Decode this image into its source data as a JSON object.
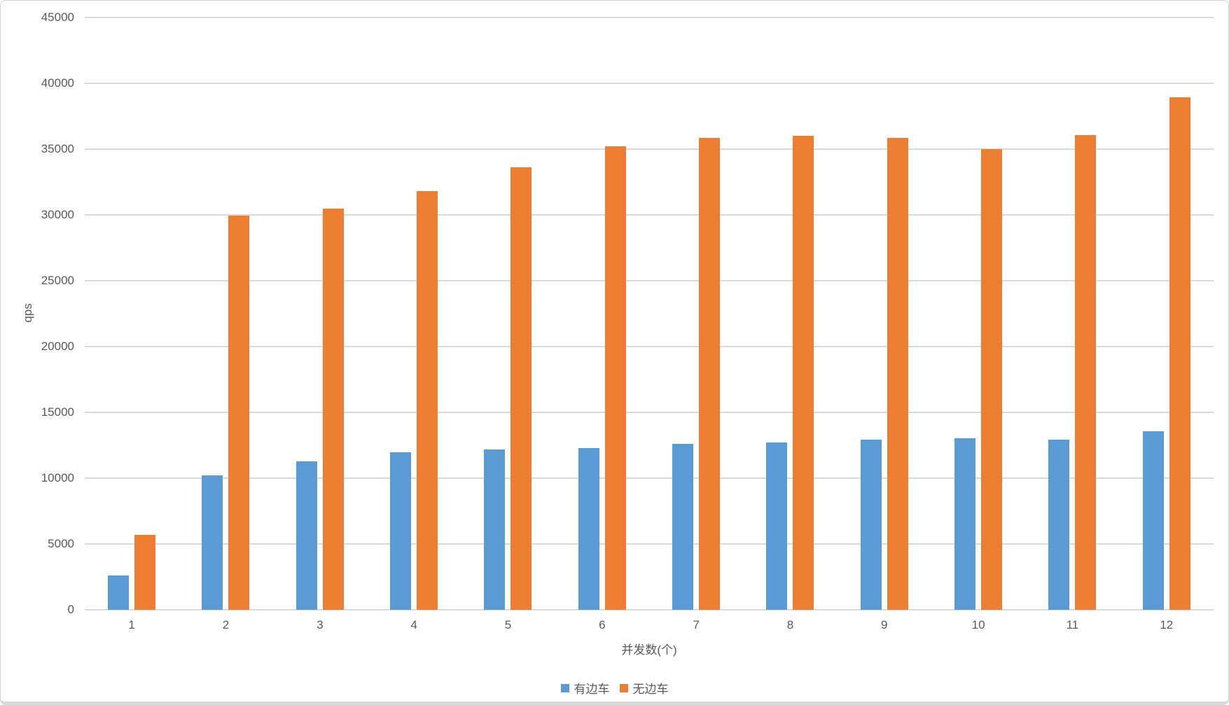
{
  "chart_data": {
    "type": "bar",
    "title": "",
    "categories": [
      "1",
      "2",
      "3",
      "4",
      "5",
      "6",
      "7",
      "8",
      "9",
      "10",
      "11",
      "12"
    ],
    "series": [
      {
        "name": "有边车",
        "color": "#5B9BD5",
        "values": [
          2600,
          10200,
          11300,
          11950,
          12200,
          12300,
          12600,
          12700,
          12950,
          13050,
          12950,
          13550
        ]
      },
      {
        "name": "无边车",
        "color": "#ED7D31",
        "values": [
          5700,
          29950,
          30500,
          31800,
          33600,
          35200,
          35850,
          36000,
          35850,
          35000,
          36050,
          38950
        ]
      }
    ],
    "xlabel": "并发数(个)",
    "ylabel": "qps",
    "ylim": [
      0,
      45000
    ],
    "ytick_step": 5000,
    "grid": true,
    "legend_position": "bottom"
  },
  "style": {
    "gridline_color": "#d9d9d9",
    "text_color": "#595959",
    "background": "#ffffff",
    "border_color": "#d2d2d2"
  }
}
